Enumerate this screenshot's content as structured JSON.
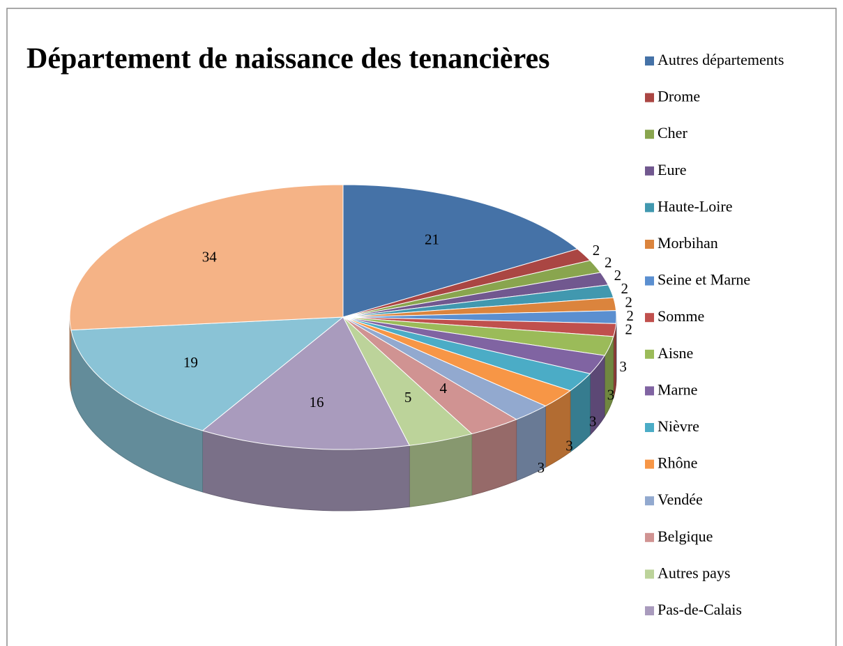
{
  "chart_data": {
    "type": "pie3d",
    "title": "Département de naissance des tenancières",
    "categories": [
      "Autres départements",
      "Drome",
      "Cher",
      "Eure",
      "Haute-Loire",
      "Morbihan",
      "Seine et Marne",
      "Somme",
      "Aisne",
      "Marne",
      "Nièvre",
      "Rhône",
      "Vendée",
      "Belgique",
      "Autres pays",
      "Pas-de-Calais",
      null,
      null
    ],
    "values": [
      21,
      2,
      2,
      2,
      2,
      2,
      2,
      2,
      3,
      3,
      3,
      3,
      3,
      4,
      5,
      16,
      19,
      34
    ],
    "colors": [
      "#4572a7",
      "#aa4643",
      "#89a54e",
      "#71588f",
      "#4198af",
      "#db843d",
      "#5b8fd0",
      "#c0504d",
      "#9bbb59",
      "#8064a2",
      "#4bacc6",
      "#f79646",
      "#92a9cf",
      "#d09392",
      "#bcd39a",
      "#a99bbd",
      "#8ac3d6",
      "#f5b386"
    ],
    "legend": "right"
  }
}
